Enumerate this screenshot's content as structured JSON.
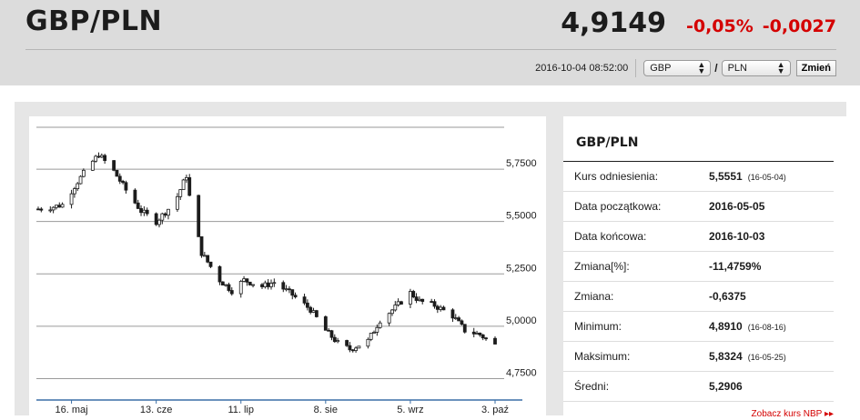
{
  "header": {
    "pair": "GBP/PLN",
    "rate": "4,9149",
    "change_pct": "-0,05%",
    "change_abs": "-0,0027",
    "timestamp": "2016-10-04 08:52:00",
    "base_currency": "GBP",
    "slash": "/",
    "quote_currency": "PLN",
    "change_button": "Zmień"
  },
  "info": {
    "title": "GBP/PLN",
    "rows": [
      {
        "label": "Kurs odniesienia:",
        "value": "5,5551",
        "note": "(16-05-04)"
      },
      {
        "label": "Data początkowa:",
        "value": "2016-05-05",
        "note": ""
      },
      {
        "label": "Data końcowa:",
        "value": "2016-10-03",
        "note": ""
      },
      {
        "label": "Zmiana[%]:",
        "value": "-11,4759%",
        "note": ""
      },
      {
        "label": "Zmiana:",
        "value": "-0,6375",
        "note": ""
      },
      {
        "label": "Minimum:",
        "value": "4,8910",
        "note": "(16-08-16)"
      },
      {
        "label": "Maksimum:",
        "value": "5,8324",
        "note": "(16-05-25)"
      },
      {
        "label": "Średni:",
        "value": "5,2906",
        "note": ""
      }
    ],
    "nbp_link": "Zobacz kurs NBP ▸▸"
  },
  "chart_data": {
    "type": "line",
    "ylim": [
      4.7,
      5.95
    ],
    "y_ticks": [
      "4,7500",
      "5,0000",
      "5,2500",
      "5,5000",
      "5,7500"
    ],
    "x_ticks": [
      "16. maj",
      "13. cze",
      "11. lip",
      "8. sie",
      "5. wrz",
      "3. paź"
    ],
    "series": [
      {
        "x": [
          "2016-05-05",
          "2016-05-10",
          "2016-05-13",
          "2016-05-18",
          "2016-05-22",
          "2016-05-25",
          "2016-05-30",
          "2016-06-03",
          "2016-06-08",
          "2016-06-13",
          "2016-06-17",
          "2016-06-20",
          "2016-06-23",
          "2016-06-24",
          "2016-06-28",
          "2016-07-04",
          "2016-07-08",
          "2016-07-12",
          "2016-07-18",
          "2016-07-22",
          "2016-07-28",
          "2016-08-03",
          "2016-08-08",
          "2016-08-12",
          "2016-08-16",
          "2016-08-22",
          "2016-08-26",
          "2016-08-31",
          "2016-09-05",
          "2016-09-08",
          "2016-09-13",
          "2016-09-19",
          "2016-09-23",
          "2016-09-28",
          "2016-10-03"
        ],
        "values": [
          5.56,
          5.57,
          5.58,
          5.69,
          5.77,
          5.82,
          5.74,
          5.65,
          5.55,
          5.5,
          5.56,
          5.62,
          5.72,
          5.62,
          5.35,
          5.22,
          5.17,
          5.22,
          5.19,
          5.21,
          5.15,
          5.08,
          4.98,
          4.92,
          4.89,
          4.93,
          5.03,
          5.09,
          5.16,
          5.12,
          5.1,
          5.05,
          4.98,
          4.96,
          4.91
        ]
      }
    ]
  }
}
